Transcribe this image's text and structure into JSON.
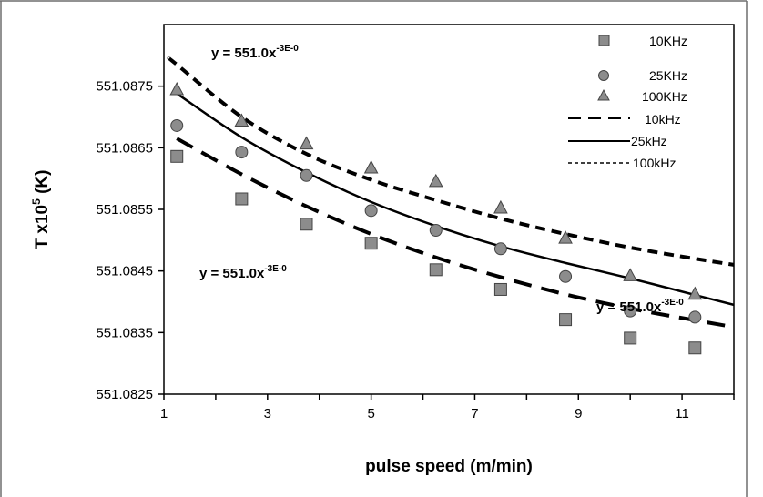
{
  "chart_data": {
    "type": "scatter",
    "xlabel": "pulse speed (m/min)",
    "ylabel": {
      "prefix": "T x10",
      "sup": "5",
      "suffix": " (K)"
    },
    "xlim": [
      1,
      12
    ],
    "ylim": [
      551.0825,
      551.0885
    ],
    "xticks": [
      "1",
      "3",
      "5",
      "7",
      "9",
      "11"
    ],
    "yticks": [
      "551.0825",
      "551.0835",
      "551.0845",
      "551.0855",
      "551.0865",
      "551.0875"
    ],
    "grid": false,
    "legend_position": "top-right",
    "series": [
      {
        "name": "10KHz",
        "marker": "square",
        "color": "#8c8c8c",
        "x": [
          1.25,
          2.5,
          3.75,
          5.0,
          6.25,
          7.5,
          8.75,
          10.0,
          11.25
        ],
        "y": [
          551.08636,
          551.08567,
          551.08526,
          551.08495,
          551.08452,
          551.0842,
          551.08371,
          551.08341,
          551.08325
        ]
      },
      {
        "name": "25KHz",
        "marker": "circle",
        "color": "#8c8c8c",
        "x": [
          1.25,
          2.5,
          3.75,
          5.0,
          6.25,
          7.5,
          8.75,
          10.0,
          11.25
        ],
        "y": [
          551.08686,
          551.08643,
          551.08605,
          551.08548,
          551.08516,
          551.08486,
          551.08441,
          551.08385,
          551.08375
        ]
      },
      {
        "name": "100KHz",
        "marker": "triangle",
        "color": "#8c8c8c",
        "x": [
          1.25,
          2.5,
          3.75,
          5.0,
          6.25,
          7.5,
          8.75,
          10.0,
          11.25
        ],
        "y": [
          551.08745,
          551.08694,
          551.08657,
          551.08618,
          551.08596,
          551.08553,
          551.08504,
          551.08443,
          551.08413
        ]
      }
    ],
    "trendlines": [
      {
        "name": "10kHz",
        "style": "long-dash",
        "color": "#000000",
        "x": [
          1.25,
          2.5,
          3.75,
          5.0,
          6.25,
          7.5,
          8.75,
          10.0,
          11.25,
          12.0
        ],
        "y": [
          551.08665,
          551.08607,
          551.08555,
          551.0851,
          551.08472,
          551.0844,
          551.08412,
          551.08389,
          551.0837,
          551.08359
        ]
      },
      {
        "name": "25kHz",
        "style": "solid",
        "color": "#000000",
        "x": [
          1.25,
          2.5,
          3.75,
          5.0,
          6.25,
          7.5,
          8.75,
          10.0,
          11.25,
          12.0
        ],
        "y": [
          551.08738,
          551.08667,
          551.0861,
          551.08562,
          551.08523,
          551.0849,
          551.08463,
          551.08438,
          551.08411,
          551.08395
        ]
      },
      {
        "name": "100kHz",
        "style": "short-dash",
        "color": "#000000",
        "x": [
          1.1,
          1.25,
          2.5,
          3.75,
          5.0,
          6.25,
          7.5,
          8.75,
          10.0,
          11.25,
          12.0
        ],
        "y": [
          551.08795,
          551.08785,
          551.087,
          551.0864,
          551.08598,
          551.08565,
          551.08535,
          551.0851,
          551.08488,
          551.0847,
          551.0846
        ]
      }
    ],
    "annotations": [
      {
        "prefix": "y = 551.0x",
        "sup": "-3E-0"
      },
      {
        "prefix": "y = 551.0x",
        "sup": "-3E-0"
      },
      {
        "prefix": "y = 551.0x",
        "sup": "-3E-0"
      }
    ]
  }
}
